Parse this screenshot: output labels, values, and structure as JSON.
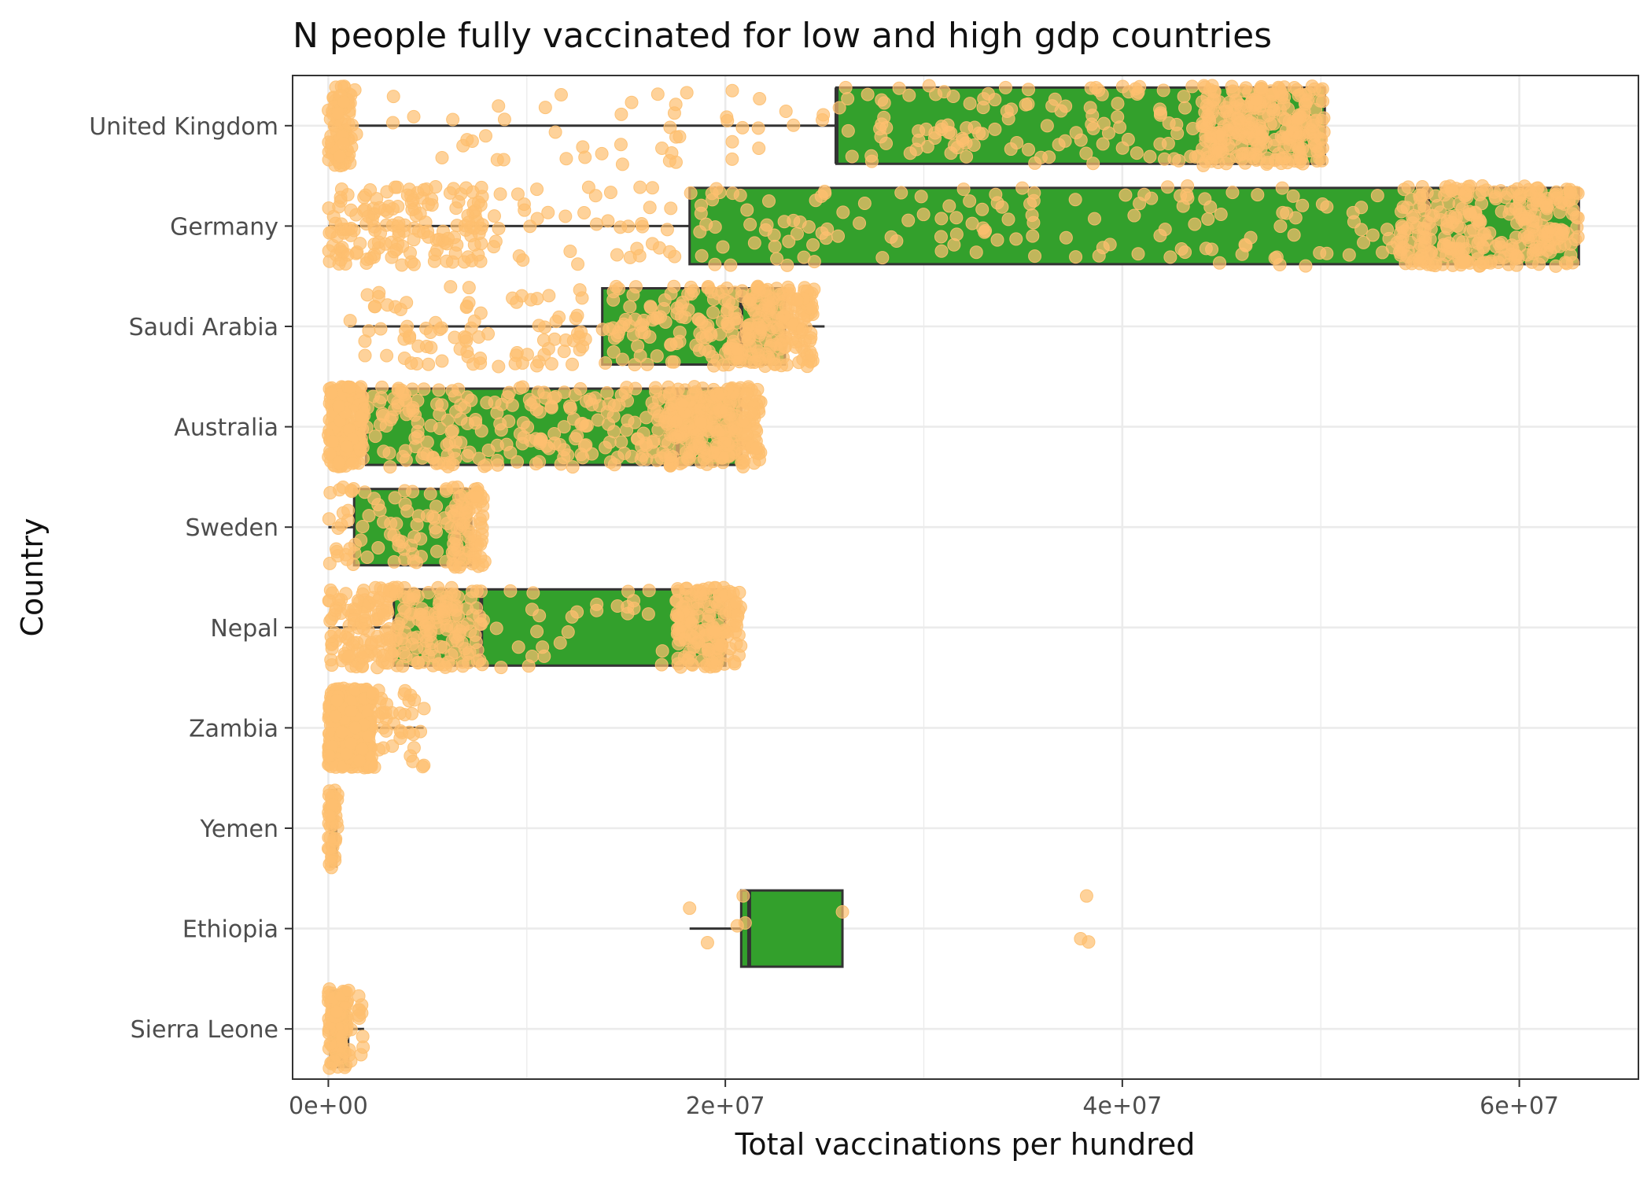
{
  "chart_data": {
    "type": "boxplot",
    "title": "N people fully vaccinated for low and high gdp countries",
    "xlabel": "Total vaccinations per hundred",
    "ylabel": "Country",
    "xlim": [
      -1800000,
      66000000
    ],
    "x_ticks": [
      {
        "value": 0,
        "label": "0e+00"
      },
      {
        "value": 20000000,
        "label": "2e+07"
      },
      {
        "value": 40000000,
        "label": "4e+07"
      },
      {
        "value": 60000000,
        "label": "6e+07"
      }
    ],
    "grid": true,
    "legend": "none",
    "colors": {
      "box_fill": "#33a02c",
      "box_stroke": "#333333",
      "point": "#fdbf6f",
      "grid": "#ebebeb",
      "panel_border": "#333333"
    },
    "categories": [
      "United Kingdom",
      "Germany",
      "Saudi Arabia",
      "Australia",
      "Sweden",
      "Nepal",
      "Zambia",
      "Yemen",
      "Ethiopia",
      "Sierra Leone"
    ],
    "boxes": [
      {
        "category": "United Kingdom",
        "whisker_low": 0,
        "q1": 25600000,
        "median": 25600000,
        "q3": 50200000,
        "whisker_high": 50200000
      },
      {
        "category": "Germany",
        "whisker_low": 0,
        "q1": 18200000,
        "median": 55400000,
        "q3": 63000000,
        "whisker_high": 63000000
      },
      {
        "category": "Saudi Arabia",
        "whisker_low": 1000000,
        "q1": 13800000,
        "median": 20800000,
        "q3": 23000000,
        "whisker_high": 25000000
      },
      {
        "category": "Australia",
        "whisker_low": 0,
        "q1": 1900000,
        "median": 17600000,
        "q3": 20800000,
        "whisker_high": 20800000
      },
      {
        "category": "Sweden",
        "whisker_low": 0,
        "q1": 1300000,
        "median": 6500000,
        "q3": 7200000,
        "whisker_high": 7200000
      },
      {
        "category": "Nepal",
        "whisker_low": 0,
        "q1": 3300000,
        "median": 7700000,
        "q3": 20000000,
        "whisker_high": 20500000
      },
      {
        "category": "Zambia",
        "whisker_low": 0,
        "q1": 600000,
        "median": 1000000,
        "q3": 2000000,
        "whisker_high": 4800000
      },
      {
        "category": "Yemen",
        "whisker_low": 0,
        "q1": 100000,
        "median": 200000,
        "q3": 400000,
        "whisker_high": 400000
      },
      {
        "category": "Ethiopia",
        "whisker_low": 18200000,
        "q1": 20800000,
        "median": 21200000,
        "q3": 25900000,
        "whisker_high": 25900000
      },
      {
        "category": "Sierra Leone",
        "whisker_low": 0,
        "q1": 100000,
        "median": 700000,
        "q3": 1000000,
        "whisker_high": 1800000
      }
    ],
    "jitter_points": [
      {
        "category": "United Kingdom",
        "ranges": [
          [
            0,
            1200000,
            90
          ],
          [
            1200000,
            25000000,
            50
          ],
          [
            25600000,
            44000000,
            120
          ],
          [
            44000000,
            50200000,
            260
          ]
        ]
      },
      {
        "category": "Germany",
        "ranges": [
          [
            0,
            8000000,
            160
          ],
          [
            8000000,
            18000000,
            40
          ],
          [
            18200000,
            54000000,
            150
          ],
          [
            54000000,
            63000000,
            300
          ]
        ]
      },
      {
        "category": "Saudi Arabia",
        "ranges": [
          [
            1000000,
            13000000,
            90
          ],
          [
            13800000,
            20000000,
            90
          ],
          [
            20000000,
            24500000,
            200
          ]
        ]
      },
      {
        "category": "Australia",
        "ranges": [
          [
            0,
            1800000,
            220
          ],
          [
            1900000,
            17000000,
            220
          ],
          [
            17000000,
            21800000,
            260
          ]
        ]
      },
      {
        "category": "Sweden",
        "ranges": [
          [
            0,
            1300000,
            20
          ],
          [
            1300000,
            6200000,
            50
          ],
          [
            6200000,
            7900000,
            80
          ]
        ]
      },
      {
        "category": "Nepal",
        "ranges": [
          [
            0,
            3300000,
            120
          ],
          [
            3300000,
            7700000,
            130
          ],
          [
            7700000,
            17500000,
            30
          ],
          [
            17500000,
            20800000,
            160
          ]
        ]
      },
      {
        "category": "Zambia",
        "ranges": [
          [
            0,
            2200000,
            380
          ],
          [
            2200000,
            5000000,
            40
          ]
        ]
      },
      {
        "category": "Yemen",
        "ranges": [
          [
            0,
            500000,
            45
          ]
        ]
      },
      {
        "category": "Ethiopia",
        "points": [
          18200000,
          19100000,
          20600000,
          20900000,
          21000000,
          25900000,
          37900000,
          38200000,
          38300000
        ]
      },
      {
        "category": "Sierra Leone",
        "ranges": [
          [
            0,
            1000000,
            90
          ],
          [
            1000000,
            1800000,
            15
          ]
        ]
      }
    ]
  }
}
